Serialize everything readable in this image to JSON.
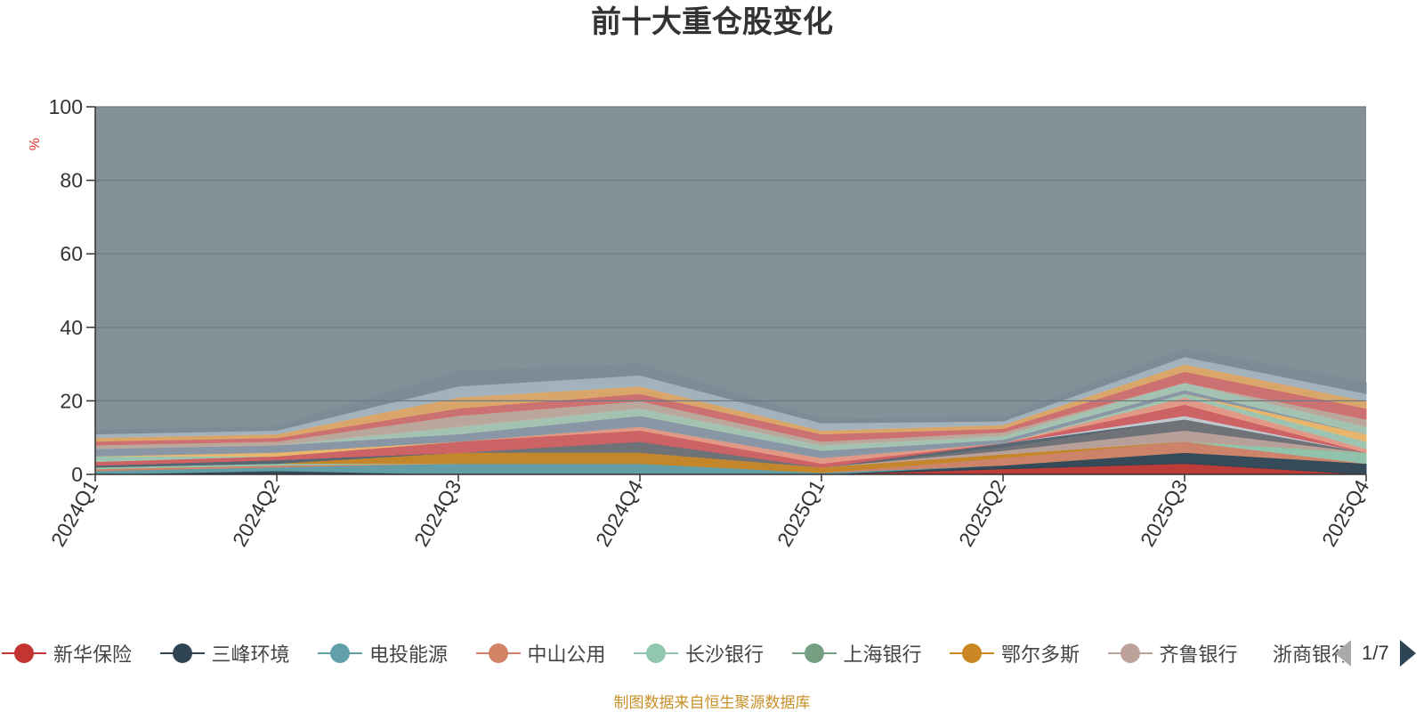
{
  "chart_data": {
    "type": "area",
    "title": "前十大重仓股变化",
    "ylabel": "%",
    "ylim": [
      0,
      100
    ],
    "yticks": [
      0,
      20,
      40,
      60,
      80,
      100
    ],
    "grid": true,
    "stacked": true,
    "categories": [
      "2024Q1",
      "2024Q2",
      "2024Q3",
      "2024Q4",
      "2025Q1",
      "2025Q2",
      "2025Q3",
      "2025Q4"
    ],
    "background_color": "#849098",
    "series": [
      {
        "name": "新华保险",
        "color": "#c23531",
        "values": [
          0,
          0,
          0,
          0,
          0,
          1.5,
          3,
          0
        ]
      },
      {
        "name": "三峰环境",
        "color": "#2f4554",
        "values": [
          0,
          1,
          0,
          0,
          0,
          1,
          3,
          3
        ]
      },
      {
        "name": "电投能源",
        "color": "#61a0a8",
        "values": [
          1,
          1,
          3,
          3,
          0.5,
          0,
          0,
          0
        ]
      },
      {
        "name": "中山公用",
        "color": "#d48265",
        "values": [
          0.5,
          0.5,
          0,
          0,
          0,
          2,
          3,
          0
        ]
      },
      {
        "name": "长沙银行",
        "color": "#91c7ae",
        "values": [
          0.5,
          0.5,
          0,
          0,
          0,
          0,
          0,
          3
        ]
      },
      {
        "name": "上海银行",
        "color": "#749f83",
        "values": [
          0,
          0,
          0,
          0,
          0,
          0,
          0,
          0
        ]
      },
      {
        "name": "鄂尔多斯",
        "color": "#ca8622",
        "values": [
          0,
          0,
          3,
          3,
          1.5,
          1,
          0,
          0
        ]
      },
      {
        "name": "齐鲁银行",
        "color": "#bda29a",
        "values": [
          0,
          0,
          0,
          0,
          0,
          1,
          3,
          0
        ]
      },
      {
        "name": "浙商银行",
        "color": "#6e7074",
        "values": [
          0,
          0,
          0,
          3,
          0,
          1,
          3,
          0
        ]
      },
      {
        "name": "",
        "color": "#546570",
        "values": [
          0.5,
          1,
          0,
          0,
          0,
          1,
          0,
          0
        ]
      },
      {
        "name": "",
        "color": "#c4ccd3",
        "values": [
          0,
          0,
          0,
          0,
          0,
          0,
          1,
          0
        ]
      },
      {
        "name": "",
        "color": "#f05b72",
        "values": [
          0,
          0,
          0,
          0,
          0,
          0,
          0,
          0
        ]
      },
      {
        "name": "",
        "color": "#ef5b9c",
        "values": [
          0,
          0,
          0,
          0,
          0,
          0,
          0,
          0
        ]
      },
      {
        "name": "",
        "color": "#d35f5f",
        "values": [
          1,
          1,
          3,
          3,
          1,
          0,
          3,
          0
        ]
      },
      {
        "name": "",
        "color": "#e89a86",
        "values": [
          0,
          0,
          0,
          1,
          1.5,
          0,
          2,
          1
        ]
      },
      {
        "name": "",
        "color": "#9fc8b3",
        "values": [
          1.5,
          0,
          0,
          0,
          0,
          0,
          1,
          2
        ]
      },
      {
        "name": "",
        "color": "#f1b868",
        "values": [
          0,
          1,
          0,
          0,
          0,
          0,
          0,
          2
        ]
      },
      {
        "name": "",
        "color": "#8a97a6",
        "values": [
          2,
          2,
          2,
          3,
          2,
          1,
          1,
          0
        ]
      },
      {
        "name": "",
        "color": "#a7c7b4",
        "values": [
          0,
          0,
          2,
          2,
          1.5,
          1,
          2,
          2
        ]
      },
      {
        "name": "",
        "color": "#bfa99c",
        "values": [
          1,
          1,
          3,
          2,
          1,
          1,
          0,
          2
        ]
      },
      {
        "name": "",
        "color": "#d36f6f",
        "values": [
          1,
          1,
          2,
          2,
          2,
          1,
          3,
          3
        ]
      },
      {
        "name": "",
        "color": "#e0a866",
        "values": [
          1,
          1,
          3,
          2,
          1,
          1,
          2,
          2
        ]
      },
      {
        "name": "",
        "color": "#a5b5c0",
        "values": [
          1,
          1,
          3,
          3,
          2,
          1,
          2,
          2
        ]
      },
      {
        "name": "",
        "color": "#7e8b96",
        "values": [
          1,
          1,
          4,
          3,
          1,
          1,
          2,
          3
        ]
      }
    ]
  },
  "legend": {
    "page": "1/7"
  },
  "source_note": "制图数据来自恒生聚源数据库"
}
